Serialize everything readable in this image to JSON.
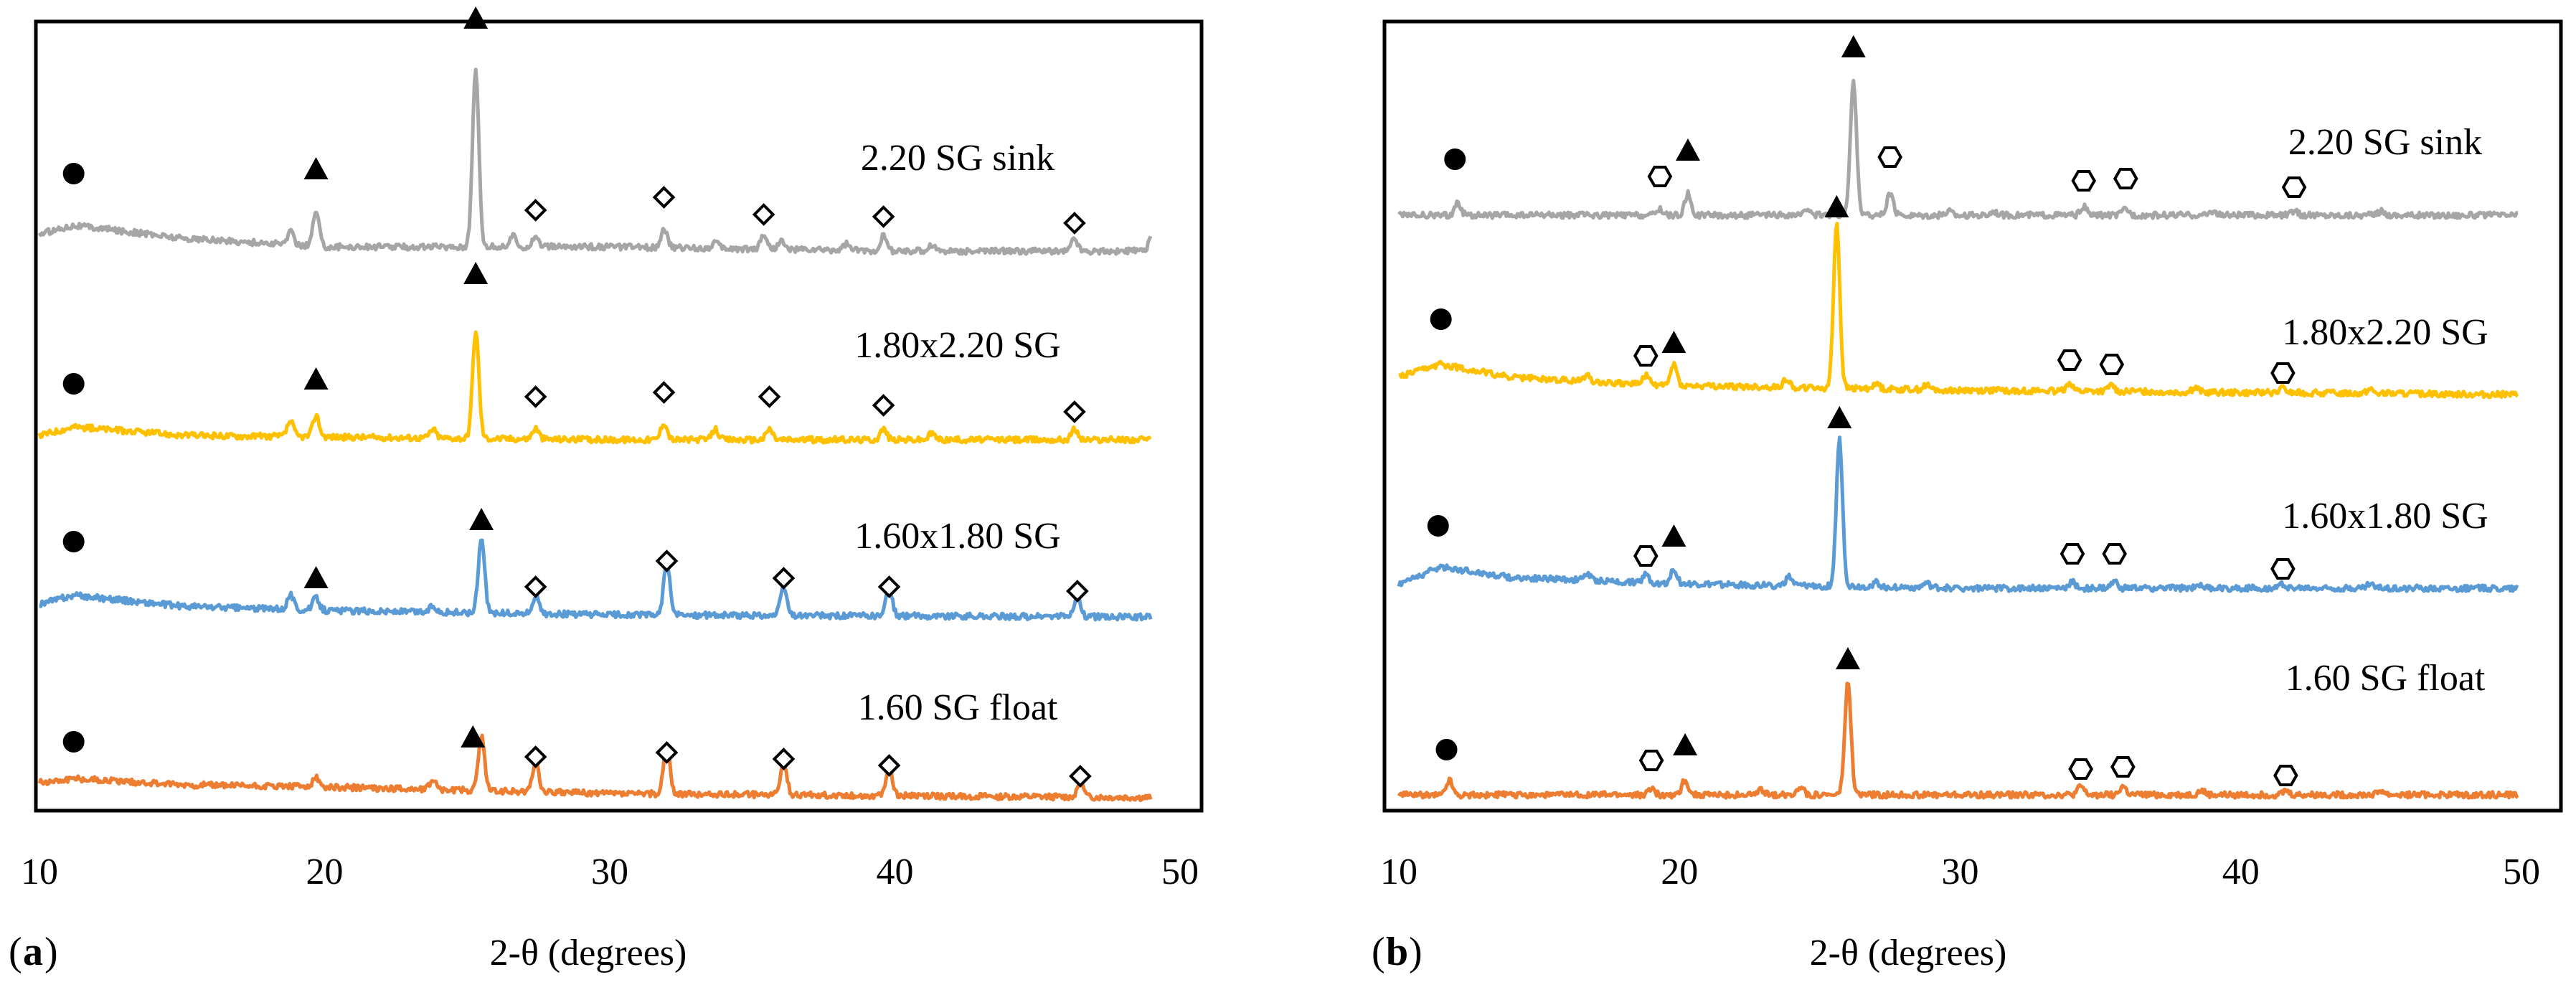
{
  "chart_data": [
    {
      "type": "line",
      "panel_label": "a",
      "xlabel": "2-θ (degrees)",
      "ylabel": "",
      "xlim": [
        10,
        50
      ],
      "xticks": [
        10,
        20,
        30,
        40,
        50
      ],
      "series": [
        {
          "name": "2.20 SG sink",
          "color": "#A6A6A6",
          "offset": 3.0,
          "baseline": [
            [
              10,
              0.08
            ],
            [
              11.2,
              0.12
            ],
            [
              15,
              0.06
            ],
            [
              20,
              0.02
            ],
            [
              30,
              0.02
            ],
            [
              40,
              0.0
            ],
            [
              49,
              0.0
            ]
          ],
          "peaks": [
            [
              18.8,
              0.06
            ],
            [
              19.7,
              0.16
            ],
            [
              25.3,
              0.82
            ],
            [
              26.6,
              0.05
            ],
            [
              27.4,
              0.05
            ],
            [
              31.9,
              0.09
            ],
            [
              33.7,
              0.03
            ],
            [
              35.4,
              0.07
            ],
            [
              36.0,
              0.04
            ],
            [
              38.3,
              0.03
            ],
            [
              39.6,
              0.07
            ],
            [
              41.3,
              0.03
            ],
            [
              46.3,
              0.06
            ],
            [
              49.0,
              0.06
            ]
          ],
          "markers": [
            {
              "phase": "circle",
              "x": 11.2,
              "h": 0.36
            },
            {
              "phase": "triangle",
              "x": 19.7,
              "h": 0.38
            },
            {
              "phase": "triangle",
              "x": 25.3,
              "h": 1.08
            },
            {
              "phase": "diamond",
              "x": 27.4,
              "h": 0.19
            },
            {
              "phase": "diamond",
              "x": 31.9,
              "h": 0.25
            },
            {
              "phase": "diamond",
              "x": 35.4,
              "h": 0.17
            },
            {
              "phase": "diamond",
              "x": 39.6,
              "h": 0.16
            },
            {
              "phase": "diamond",
              "x": 46.3,
              "h": 0.13
            }
          ]
        },
        {
          "name": "1.80x2.20 SG",
          "color": "#FFC000",
          "offset": 2.0,
          "baseline": [
            [
              10,
              0.02
            ],
            [
              11.2,
              0.06
            ],
            [
              15,
              0.02
            ],
            [
              30,
              0.0
            ],
            [
              49,
              0.0
            ]
          ],
          "peaks": [
            [
              18.8,
              0.07
            ],
            [
              19.7,
              0.1
            ],
            [
              23.8,
              0.04
            ],
            [
              25.3,
              0.5
            ],
            [
              27.4,
              0.05
            ],
            [
              31.9,
              0.08
            ],
            [
              33.7,
              0.05
            ],
            [
              35.6,
              0.05
            ],
            [
              39.6,
              0.05
            ],
            [
              41.3,
              0.03
            ],
            [
              46.3,
              0.05
            ]
          ],
          "markers": [
            {
              "phase": "circle",
              "x": 11.2,
              "h": 0.26
            },
            {
              "phase": "triangle",
              "x": 19.7,
              "h": 0.28
            },
            {
              "phase": "triangle",
              "x": 25.3,
              "h": 0.77
            },
            {
              "phase": "diamond",
              "x": 27.4,
              "h": 0.2
            },
            {
              "phase": "diamond",
              "x": 31.9,
              "h": 0.22
            },
            {
              "phase": "diamond",
              "x": 35.6,
              "h": 0.2
            },
            {
              "phase": "diamond",
              "x": 39.6,
              "h": 0.16
            },
            {
              "phase": "diamond",
              "x": 46.3,
              "h": 0.13
            }
          ]
        },
        {
          "name": "1.60x1.80 SG",
          "color": "#5B9BD5",
          "offset": 1.0,
          "baseline": [
            [
              10,
              0.06
            ],
            [
              11.2,
              0.1
            ],
            [
              15,
              0.05
            ],
            [
              20,
              0.03
            ],
            [
              30,
              0.01
            ],
            [
              49,
              0.0
            ]
          ],
          "peaks": [
            [
              18.8,
              0.07
            ],
            [
              19.7,
              0.06
            ],
            [
              23.8,
              0.03
            ],
            [
              25.5,
              0.35
            ],
            [
              27.4,
              0.08
            ],
            [
              32.0,
              0.24
            ],
            [
              36.1,
              0.13
            ],
            [
              39.8,
              0.13
            ],
            [
              46.4,
              0.1
            ]
          ],
          "markers": [
            {
              "phase": "circle",
              "x": 11.2,
              "h": 0.35
            },
            {
              "phase": "triangle",
              "x": 19.7,
              "h": 0.18
            },
            {
              "phase": "triangle",
              "x": 25.5,
              "h": 0.45
            },
            {
              "phase": "diamond",
              "x": 27.4,
              "h": 0.14
            },
            {
              "phase": "diamond",
              "x": 32.0,
              "h": 0.26
            },
            {
              "phase": "diamond",
              "x": 36.1,
              "h": 0.18
            },
            {
              "phase": "diamond",
              "x": 39.8,
              "h": 0.14
            },
            {
              "phase": "diamond",
              "x": 46.4,
              "h": 0.12
            }
          ]
        },
        {
          "name": "1.60 SG float",
          "color": "#ED7D31",
          "offset": 0.0,
          "baseline": [
            [
              10,
              0.07
            ],
            [
              11.2,
              0.09
            ],
            [
              15,
              0.06
            ],
            [
              20,
              0.05
            ],
            [
              30,
              0.02
            ],
            [
              49,
              0.0
            ]
          ],
          "peaks": [
            [
              19.7,
              0.04
            ],
            [
              23.8,
              0.05
            ],
            [
              25.5,
              0.25
            ],
            [
              27.4,
              0.14
            ],
            [
              32.0,
              0.23
            ],
            [
              36.1,
              0.15
            ],
            [
              39.8,
              0.13
            ],
            [
              46.5,
              0.07
            ]
          ],
          "markers": [
            {
              "phase": "circle",
              "x": 11.2,
              "h": 0.26
            },
            {
              "phase": "triangle",
              "x": 25.2,
              "h": 0.28
            },
            {
              "phase": "diamond",
              "x": 27.4,
              "h": 0.19
            },
            {
              "phase": "diamond",
              "x": 32.0,
              "h": 0.21
            },
            {
              "phase": "diamond",
              "x": 36.1,
              "h": 0.18
            },
            {
              "phase": "diamond",
              "x": 39.8,
              "h": 0.15
            },
            {
              "phase": "diamond",
              "x": 46.5,
              "h": 0.1
            }
          ]
        }
      ]
    },
    {
      "type": "line",
      "panel_label": "b",
      "xlabel": "2-θ (degrees)",
      "ylabel": "",
      "xlim": [
        10,
        50
      ],
      "xticks": [
        10,
        20,
        30,
        40,
        50
      ],
      "series": [
        {
          "name": "2.20 SG sink",
          "color": "#A6A6A6",
          "offset": 3.0,
          "baseline": [
            [
              10,
              0.0
            ],
            [
              49.9,
              0.0
            ]
          ],
          "peaks": [
            [
              12.1,
              0.06
            ],
            [
              19.3,
              0.03
            ],
            [
              20.3,
              0.1
            ],
            [
              24.6,
              0.03
            ],
            [
              26.2,
              0.62
            ],
            [
              27.5,
              0.1
            ],
            [
              29.6,
              0.02
            ],
            [
              31.2,
              0.02
            ],
            [
              34.4,
              0.04
            ],
            [
              35.9,
              0.03
            ],
            [
              39.0,
              0.02
            ],
            [
              41.9,
              0.02
            ],
            [
              45.0,
              0.02
            ]
          ],
          "markers": [
            {
              "phase": "circle",
              "x": 12.0,
              "h": 0.26
            },
            {
              "phase": "hexagon",
              "x": 19.3,
              "h": 0.18
            },
            {
              "phase": "triangle",
              "x": 20.3,
              "h": 0.3
            },
            {
              "phase": "triangle",
              "x": 26.2,
              "h": 0.78
            },
            {
              "phase": "hexagon",
              "x": 27.5,
              "h": 0.27
            },
            {
              "phase": "hexagon",
              "x": 34.4,
              "h": 0.16
            },
            {
              "phase": "hexagon",
              "x": 35.9,
              "h": 0.17
            },
            {
              "phase": "hexagon",
              "x": 41.9,
              "h": 0.13
            }
          ]
        },
        {
          "name": "1.80x2.20 SG",
          "color": "#FFC000",
          "offset": 1.8,
          "baseline": [
            [
              10,
              0.08
            ],
            [
              11.5,
              0.14
            ],
            [
              14,
              0.08
            ],
            [
              20,
              0.04
            ],
            [
              30,
              0.02
            ],
            [
              49.9,
              0.0
            ]
          ],
          "peaks": [
            [
              16.7,
              0.03
            ],
            [
              18.8,
              0.04
            ],
            [
              19.8,
              0.1
            ],
            [
              23.8,
              0.04
            ],
            [
              25.6,
              0.77
            ],
            [
              27.0,
              0.03
            ],
            [
              28.8,
              0.02
            ],
            [
              33.9,
              0.04
            ],
            [
              35.4,
              0.03
            ],
            [
              38.4,
              0.02
            ],
            [
              41.5,
              0.02
            ],
            [
              44.6,
              0.02
            ]
          ],
          "markers": [
            {
              "phase": "circle",
              "x": 11.5,
              "h": 0.35
            },
            {
              "phase": "hexagon",
              "x": 18.8,
              "h": 0.18
            },
            {
              "phase": "triangle",
              "x": 19.8,
              "h": 0.24
            },
            {
              "phase": "triangle",
              "x": 25.6,
              "h": 0.87
            },
            {
              "phase": "hexagon",
              "x": 33.9,
              "h": 0.16
            },
            {
              "phase": "hexagon",
              "x": 35.4,
              "h": 0.14
            },
            {
              "phase": "hexagon",
              "x": 41.5,
              "h": 0.1
            }
          ]
        },
        {
          "name": "1.60x1.80 SG",
          "color": "#5B9BD5",
          "offset": 0.9,
          "baseline": [
            [
              10,
              0.02
            ],
            [
              11.5,
              0.1
            ],
            [
              14,
              0.05
            ],
            [
              20,
              0.02
            ],
            [
              30,
              0.0
            ],
            [
              49.9,
              0.0
            ]
          ],
          "peaks": [
            [
              16.7,
              0.03
            ],
            [
              18.8,
              0.04
            ],
            [
              19.8,
              0.07
            ],
            [
              23.9,
              0.04
            ],
            [
              25.7,
              0.68
            ],
            [
              27.0,
              0.02
            ],
            [
              28.8,
              0.02
            ],
            [
              34.0,
              0.03
            ],
            [
              35.5,
              0.03
            ],
            [
              38.5,
              0.02
            ],
            [
              41.5,
              0.02
            ],
            [
              44.6,
              0.02
            ]
          ],
          "markers": [
            {
              "phase": "circle",
              "x": 11.4,
              "h": 0.29
            },
            {
              "phase": "hexagon",
              "x": 18.8,
              "h": 0.15
            },
            {
              "phase": "triangle",
              "x": 19.8,
              "h": 0.24
            },
            {
              "phase": "triangle",
              "x": 25.7,
              "h": 0.79
            },
            {
              "phase": "hexagon",
              "x": 34.0,
              "h": 0.16
            },
            {
              "phase": "hexagon",
              "x": 35.5,
              "h": 0.16
            },
            {
              "phase": "hexagon",
              "x": 41.5,
              "h": 0.09
            }
          ]
        },
        {
          "name": "1.60 SG float",
          "color": "#ED7D31",
          "offset": 0.0,
          "baseline": [
            [
              10,
              0.0
            ],
            [
              49.9,
              0.0
            ]
          ],
          "peaks": [
            [
              11.8,
              0.07
            ],
            [
              19.0,
              0.03
            ],
            [
              20.2,
              0.07
            ],
            [
              22.9,
              0.02
            ],
            [
              24.3,
              0.04
            ],
            [
              26.0,
              0.52
            ],
            [
              34.3,
              0.04
            ],
            [
              35.8,
              0.04
            ],
            [
              38.6,
              0.02
            ],
            [
              41.6,
              0.02
            ],
            [
              45.0,
              0.02
            ]
          ],
          "markers": [
            {
              "phase": "circle",
              "x": 11.7,
              "h": 0.21
            },
            {
              "phase": "hexagon",
              "x": 19.0,
              "h": 0.16
            },
            {
              "phase": "triangle",
              "x": 20.2,
              "h": 0.23
            },
            {
              "phase": "triangle",
              "x": 26.0,
              "h": 0.63
            },
            {
              "phase": "hexagon",
              "x": 34.3,
              "h": 0.12
            },
            {
              "phase": "hexagon",
              "x": 35.8,
              "h": 0.13
            },
            {
              "phase": "hexagon",
              "x": 41.6,
              "h": 0.09
            }
          ]
        }
      ]
    }
  ]
}
